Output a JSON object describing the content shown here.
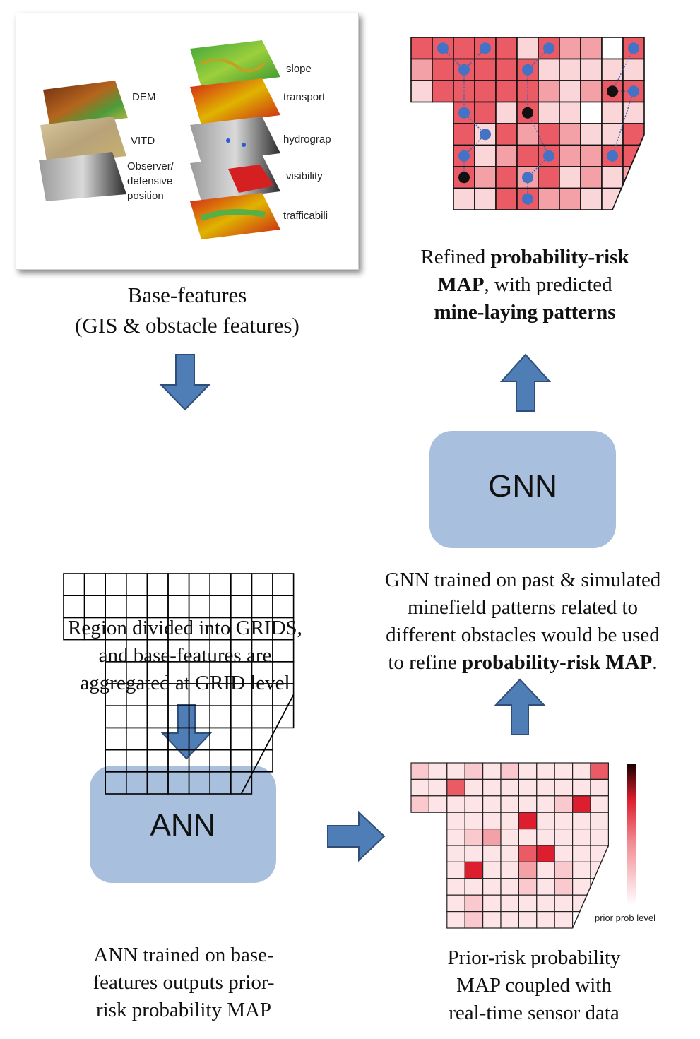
{
  "base_panel": {
    "left_layers": [
      {
        "label": "DEM",
        "icon": "dem-layer"
      },
      {
        "label": "VITD",
        "icon": "vitd-layer"
      },
      {
        "label": "Observer/\ndefensive\nposition",
        "icon": "observer-layer"
      }
    ],
    "right_layers": [
      {
        "label": "slope",
        "icon": "slope-layer"
      },
      {
        "label": "transport",
        "icon": "transport-layer"
      },
      {
        "label": "hydrograp",
        "icon": "hydrography-layer"
      },
      {
        "label": "visibility",
        "icon": "visibility-layer"
      },
      {
        "label": "trafficabili",
        "icon": "trafficability-layer"
      }
    ]
  },
  "base_caption": {
    "line1": "Base-features",
    "line2": "(GIS & obstacle features)"
  },
  "grid_caption": {
    "line1": "Region divided into GRIDS,",
    "line2": "and base-features are",
    "line3": "aggregated at GRID level"
  },
  "ann": {
    "label": "ANN",
    "caption": {
      "line1": "ANN trained on base-",
      "line2": "features outputs prior-",
      "line3": "risk probability MAP"
    }
  },
  "gnn": {
    "label": "GNN",
    "caption": {
      "line1": "GNN trained on past & simulated",
      "line2": "minefield patterns related to",
      "line3": "different obstacles would be used",
      "line4_plain": "to refine ",
      "line4_bold": "probability-risk MAP",
      "line4_end": "."
    }
  },
  "prior_map": {
    "colorbar_label": "prior prob level",
    "caption": {
      "line1": "Prior-risk probability",
      "line2": "MAP coupled with",
      "line3": "real-time sensor data"
    }
  },
  "refined_map": {
    "caption": {
      "l1_plain": "Refined ",
      "l1_bold": "probability-risk",
      "l2_bold": "MAP",
      "l2_plain": ", with predicted",
      "l3_bold": "mine-laying patterns"
    }
  },
  "colors": {
    "arrow_fill": "#4f7db5",
    "arrow_stroke": "#2f4f7a",
    "model_box": "#a8c0dd",
    "node": "#4472c4"
  }
}
